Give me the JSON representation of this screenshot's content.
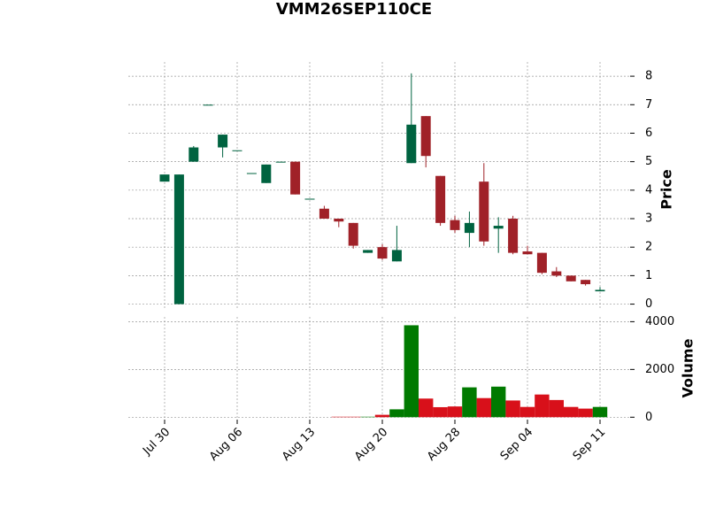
{
  "chart_data": {
    "type": "candlestick",
    "title": "VMM26SEP110CE",
    "categories": [
      "Jul 30",
      null,
      null,
      null,
      null,
      "Aug 06",
      null,
      null,
      null,
      null,
      "Aug 13",
      null,
      null,
      null,
      null,
      "Aug 20",
      null,
      null,
      null,
      null,
      "Aug 28",
      null,
      null,
      null,
      null,
      "Sep 04",
      null,
      null,
      null,
      null,
      "Sep 11"
    ],
    "open": [
      4.3,
      0,
      5.0,
      7.0,
      5.5,
      5.4,
      4.6,
      4.25,
      5.0,
      5.0,
      3.7,
      3.35,
      3.0,
      2.85,
      1.8,
      2.0,
      1.5,
      4.95,
      6.6,
      4.5,
      2.95,
      2.5,
      4.3,
      2.65,
      3.0,
      1.85,
      1.8,
      1.15,
      1.0,
      0.85,
      0.45
    ],
    "high": [
      4.55,
      4.55,
      5.55,
      7.0,
      5.95,
      5.4,
      4.6,
      4.9,
      5.0,
      5.0,
      3.7,
      3.45,
      3.0,
      2.85,
      1.9,
      2.1,
      2.75,
      8.1,
      6.6,
      4.5,
      3.1,
      3.25,
      4.95,
      3.05,
      3.1,
      2.05,
      1.8,
      1.3,
      1.0,
      0.85,
      0.6
    ],
    "low": [
      4.3,
      0,
      5.0,
      7.0,
      5.15,
      5.4,
      4.6,
      4.25,
      5.0,
      3.85,
      3.7,
      3.0,
      2.7,
      1.95,
      1.8,
      1.55,
      1.5,
      4.95,
      4.8,
      2.75,
      2.5,
      2.0,
      2.05,
      1.8,
      1.75,
      1.75,
      1.05,
      0.95,
      0.8,
      0.65,
      0.45
    ],
    "close": [
      4.55,
      4.55,
      5.5,
      7.0,
      5.95,
      5.4,
      4.6,
      4.9,
      5.0,
      3.85,
      3.7,
      3.0,
      2.9,
      2.05,
      1.9,
      1.6,
      1.9,
      6.3,
      5.2,
      2.85,
      2.6,
      2.85,
      2.2,
      2.75,
      1.8,
      1.75,
      1.1,
      1.0,
      0.8,
      0.7,
      0.5
    ],
    "volume": [
      0,
      0,
      0,
      0,
      0,
      0,
      0,
      0,
      0,
      0,
      0,
      0,
      20,
      20,
      20,
      100,
      330,
      3850,
      780,
      420,
      450,
      1250,
      800,
      1280,
      700,
      430,
      950,
      720,
      430,
      360,
      430
    ],
    "up_color": "#006340",
    "down_color": "#a02128",
    "volume_up_color": "#007a00",
    "volume_down_color": "#d8101a",
    "ylabel": "Price",
    "ylim": [
      -0.2,
      8.5
    ],
    "yticks": [
      0,
      1,
      2,
      3,
      4,
      5,
      6,
      7,
      8
    ],
    "volume_label": "Volume",
    "volume_lim": [
      -100,
      4200
    ],
    "volume_ticks": [
      0,
      2000,
      4000
    ],
    "grid": true
  }
}
